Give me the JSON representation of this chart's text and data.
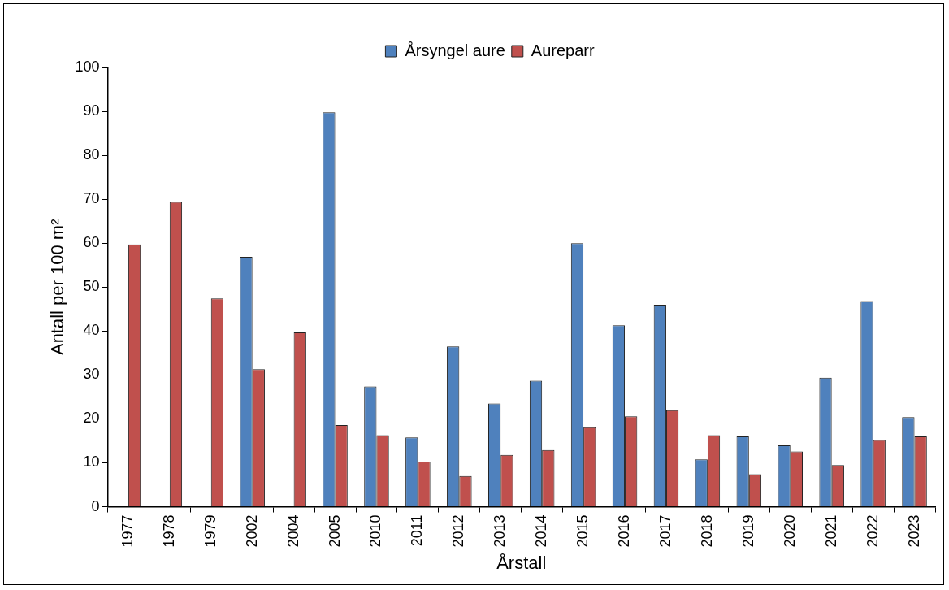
{
  "chart_data": {
    "type": "bar",
    "xlabel": "Årstall",
    "ylabel": "Antall per 100 m²",
    "categories": [
      "1977",
      "1978",
      "1979",
      "2002",
      "2004",
      "2005",
      "2010",
      "2011",
      "2012",
      "2013",
      "2014",
      "2015",
      "2016",
      "2017",
      "2018",
      "2019",
      "2020",
      "2021",
      "2022",
      "2023"
    ],
    "series": [
      {
        "name": "Årsyngel aure",
        "color": "#4f81bd",
        "values": [
          null,
          null,
          null,
          56.9,
          null,
          89.8,
          27.4,
          15.8,
          36.5,
          23.5,
          28.7,
          60,
          41.3,
          46,
          10.8,
          16,
          14,
          29.4,
          46.8,
          20.4
        ]
      },
      {
        "name": "Aureparr",
        "color": "#c0504d",
        "values": [
          59.7,
          69.4,
          47.4,
          31.3,
          39.7,
          18.6,
          16.3,
          10.3,
          7,
          11.8,
          12.9,
          18.1,
          20.6,
          22,
          16.3,
          7.4,
          12.6,
          9.5,
          15.2,
          16
        ]
      }
    ],
    "ylim": [
      0,
      100
    ],
    "yticks": [
      0,
      10,
      20,
      30,
      40,
      50,
      60,
      70,
      80,
      90,
      100
    ],
    "grid": false,
    "legend": "top"
  }
}
